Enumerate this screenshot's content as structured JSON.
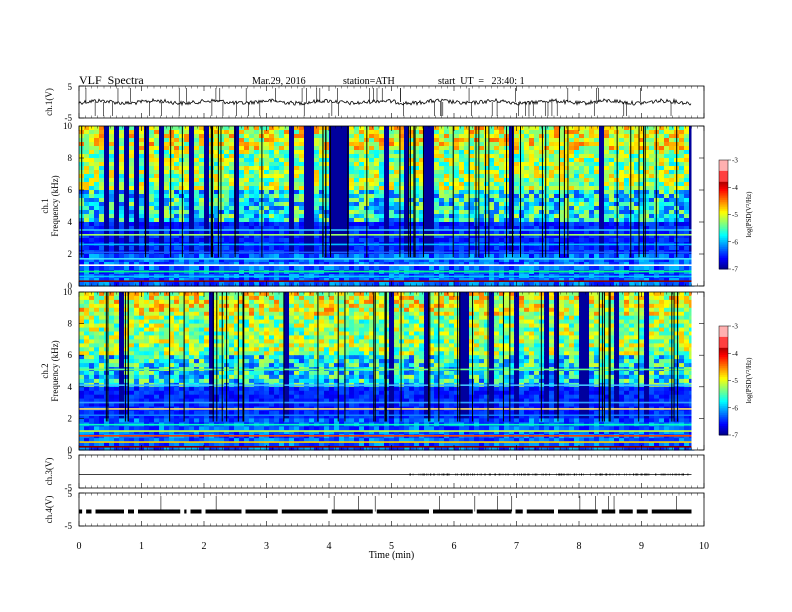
{
  "header": {
    "title": "VLF  Spectra",
    "date": "Mar.29, 2016",
    "station": "station=ATH",
    "start": "start  UT  =   23:40: 1"
  },
  "chart_data": [
    {
      "type": "line",
      "panel": "ch1-waveform",
      "ylabel": "ch.1(V)",
      "ylim": [
        -5,
        5
      ],
      "yticks": [
        "5",
        "-5"
      ],
      "xlim": [
        0,
        10
      ],
      "series": [
        {
          "values_summary": "noisy trace around 0 V with occasional spikes"
        }
      ]
    },
    {
      "type": "heatmap",
      "panel": "ch1-spectrogram",
      "ylabel_channel": "ch.1",
      "ylabel": "Frequency  (kHz)",
      "ylim": [
        0,
        10
      ],
      "yticks": [
        "0",
        "2",
        "4",
        "6",
        "8",
        "10"
      ],
      "xlim": [
        0,
        10
      ],
      "colorbar": {
        "label": "log(PSD(V²/Hz)",
        "range": [
          -7,
          -3
        ],
        "ticks": [
          "-3",
          "-4",
          "-5",
          "-6",
          "-7"
        ]
      }
    },
    {
      "type": "heatmap",
      "panel": "ch2-spectrogram",
      "ylabel_channel": "ch.2",
      "ylabel": "Frequency  (kHz)",
      "ylim": [
        0,
        10
      ],
      "yticks": [
        "0",
        "2",
        "4",
        "6",
        "8",
        "10"
      ],
      "xlim": [
        0,
        10
      ],
      "colorbar": {
        "label": "log(PSD(V²/Hz)",
        "range": [
          -7,
          -3
        ],
        "ticks": [
          "-3",
          "-4",
          "-5",
          "-6",
          "-7"
        ]
      }
    },
    {
      "type": "line",
      "panel": "ch3-waveform",
      "ylabel": "ch.3(V)",
      "ylim": [
        -5,
        5
      ],
      "yticks": [
        "5",
        "-5"
      ],
      "xlim": [
        0,
        10
      ]
    },
    {
      "type": "line",
      "panel": "ch4-waveform",
      "ylabel": "ch.4(V)",
      "ylim": [
        -5,
        5
      ],
      "yticks": [
        "5",
        "-5"
      ],
      "xlim": [
        0,
        10
      ]
    }
  ],
  "xaxis": {
    "label": "Time  (min)",
    "ticks": [
      "0",
      "1",
      "2",
      "3",
      "4",
      "5",
      "6",
      "7",
      "8",
      "9",
      "10"
    ],
    "data_end": 9.8
  }
}
